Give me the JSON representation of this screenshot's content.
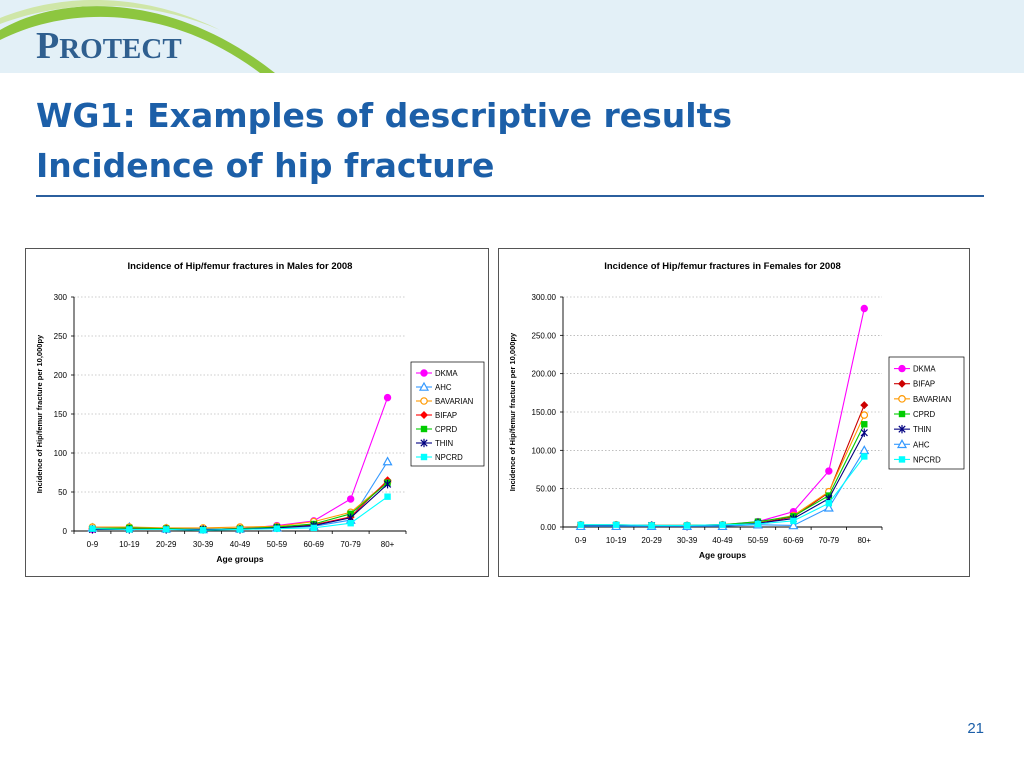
{
  "logo": {
    "text_first": "P",
    "text_rest": "ROTECT"
  },
  "title_line1": "WG1: Examples of descriptive results",
  "title_line2": "Incidence of hip fracture",
  "page_number": "21",
  "colors": {
    "title": "#1c5fa8",
    "band": "#e3f0f7",
    "swoosh": "#8dc63f"
  },
  "chart_data": [
    {
      "type": "line",
      "title": "Incidence of Hip/femur fractures in Males for 2008",
      "xlabel": "Age groups",
      "ylabel": "Incidence of Hip/femur fracture per 10,000py",
      "categories": [
        "0-9",
        "10-19",
        "20-29",
        "30-39",
        "40-49",
        "50-59",
        "60-69",
        "70-79",
        "80+"
      ],
      "ylim": [
        0,
        300
      ],
      "yticks": [
        "0",
        "50",
        "100",
        "150",
        "200",
        "250",
        "300"
      ],
      "grid": true,
      "legend_position": "right",
      "series": [
        {
          "name": "DKMA",
          "color": "#ff00ff",
          "marker": "circle",
          "values": [
            2,
            3,
            2,
            2,
            3,
            7,
            13,
            41,
            171
          ]
        },
        {
          "name": "AHC",
          "color": "#3399ff",
          "marker": "triangle",
          "values": [
            4,
            5,
            3,
            2,
            3,
            4,
            6,
            14,
            89
          ]
        },
        {
          "name": "BAVARIAN",
          "color": "#ff9900",
          "marker": "circle-open",
          "values": [
            5,
            5,
            4,
            4,
            5,
            6,
            12,
            24,
            63
          ]
        },
        {
          "name": "BIFAP",
          "color": "#ff0000",
          "marker": "diamond",
          "values": [
            3,
            3,
            2,
            2,
            3,
            4,
            8,
            18,
            65
          ]
        },
        {
          "name": "CPRD",
          "color": "#00cc00",
          "marker": "square",
          "values": [
            3,
            4,
            3,
            2,
            3,
            5,
            9,
            22,
            62
          ]
        },
        {
          "name": "THIN",
          "color": "#000080",
          "marker": "star",
          "values": [
            2,
            2,
            2,
            2,
            2,
            4,
            7,
            17,
            60
          ]
        },
        {
          "name": "NPCRD",
          "color": "#00ffff",
          "marker": "square",
          "values": [
            3,
            2,
            2,
            1,
            2,
            3,
            4,
            10,
            44
          ]
        }
      ]
    },
    {
      "type": "line",
      "title": "Incidence of Hip/femur fractures in Females for 2008",
      "xlabel": "Age groups",
      "ylabel": "Incidence of Hip/femur fracture per 10,000py",
      "categories": [
        "0-9",
        "10-19",
        "20-29",
        "30-39",
        "40-49",
        "50-59",
        "60-69",
        "70-79",
        "80+"
      ],
      "ylim": [
        0,
        300
      ],
      "yticks": [
        "0.00",
        "50.00",
        "100.00",
        "150.00",
        "200.00",
        "250.00",
        "300.00"
      ],
      "grid": true,
      "legend_position": "right",
      "series": [
        {
          "name": "DKMA",
          "color": "#ff00ff",
          "marker": "circle",
          "values": [
            2,
            2,
            2,
            2,
            3,
            7,
            20,
            73,
            285
          ]
        },
        {
          "name": "BIFAP",
          "color": "#cc0000",
          "marker": "diamond",
          "values": [
            2,
            2,
            2,
            2,
            2,
            5,
            13,
            45,
            159
          ]
        },
        {
          "name": "BAVARIAN",
          "color": "#ff9900",
          "marker": "circle-open",
          "values": [
            3,
            3,
            2,
            2,
            3,
            6,
            15,
            46,
            146
          ]
        },
        {
          "name": "CPRD",
          "color": "#00cc00",
          "marker": "square",
          "values": [
            2,
            2,
            2,
            2,
            3,
            7,
            14,
            41,
            134
          ]
        },
        {
          "name": "THIN",
          "color": "#000080",
          "marker": "star",
          "values": [
            2,
            2,
            2,
            1,
            2,
            5,
            11,
            37,
            123
          ]
        },
        {
          "name": "AHC",
          "color": "#3399ff",
          "marker": "triangle",
          "values": [
            1,
            1,
            1,
            1,
            1,
            3,
            2,
            25,
            100
          ]
        },
        {
          "name": "NPCRD",
          "color": "#00ffff",
          "marker": "square",
          "values": [
            3,
            3,
            2,
            2,
            3,
            4,
            8,
            31,
            92
          ]
        }
      ]
    }
  ]
}
